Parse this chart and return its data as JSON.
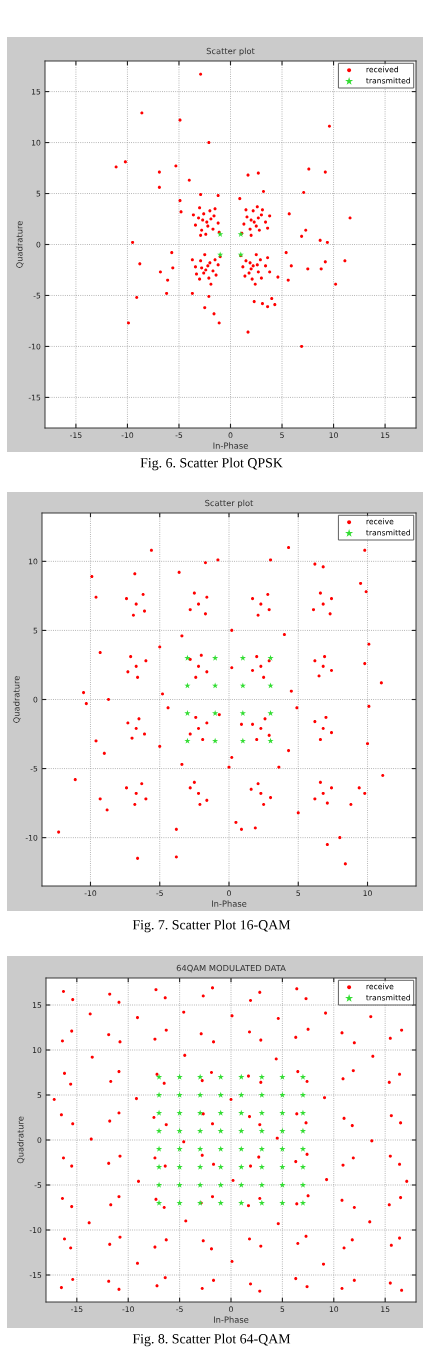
{
  "chart_data": [
    {
      "type": "scatter",
      "title": "Scatter plot",
      "xlabel": "In-Phase",
      "ylabel": "Quadrature",
      "annotations": [
        "Fig. 6. Scatter Plot QPSK"
      ],
      "xlim": [
        -18,
        18
      ],
      "ylim": [
        -18,
        18
      ],
      "xticks": [
        -15,
        -10,
        -5,
        0,
        5,
        10,
        15
      ],
      "yticks": [
        -15,
        -10,
        -5,
        0,
        5,
        10,
        15
      ],
      "grid": true,
      "legend": "top right",
      "series": [
        {
          "name": "received",
          "color": "#ff0000",
          "marker": "circle",
          "x": [
            -2.3,
            -3.1,
            -1.6,
            -2.8,
            -1.7,
            -3.4,
            -2.0,
            -2.6,
            -1.2,
            -3.6,
            -2.4,
            -1.5,
            -3.0,
            -2.9,
            -1.1,
            -2.2,
            -2.7,
            -1.9,
            2.3,
            1.6,
            3.0,
            1.9,
            2.8,
            3.4,
            2.2,
            1.3,
            2.6,
            3.6,
            1.5,
            3.1,
            2.0,
            1.1,
            3.8,
            2.5,
            2.0,
            2.7,
            -2.2,
            -2.9,
            -1.5,
            -2.6,
            -1.7,
            -3.4,
            -2.1,
            -1.2,
            -3.0,
            -3.7,
            -1.4,
            -2.5,
            -1.9,
            -3.3,
            -1.0,
            -2.4,
            -2.0,
            -2.8,
            2.2,
            1.5,
            2.9,
            1.8,
            2.7,
            3.4,
            2.1,
            1.2,
            3.0,
            3.6,
            1.4,
            2.5,
            2.4,
            3.8,
            1.0,
            2.0,
            2.6,
            1.9,
            -2.9,
            -8.6,
            -4.9,
            9.6,
            -2.1,
            -11.1,
            -10.2,
            -5.3,
            -6.9,
            -6.9,
            -4.0,
            1.7,
            2.7,
            7.6,
            9.2,
            7.1,
            11.6,
            7.3,
            6.9,
            8.7,
            9.4,
            -9.5,
            -8.8,
            11.1,
            9.2,
            7.5,
            8.8,
            10.2,
            5.9,
            5.6,
            -6.8,
            -6.1,
            -6.2,
            -9.1,
            -9.9,
            -2.5,
            -1.6,
            -1.1,
            1.7,
            6.9,
            2.3,
            3.1,
            3.6,
            4.3,
            4.0,
            -2.1,
            -3.7,
            -5.6,
            -5.7,
            -4.8,
            -4.9,
            -2.9,
            -1.2,
            0.9,
            3.2,
            5.7,
            5.4,
            4.6
          ],
          "values": [
            2.2,
            2.6,
            2.8,
            1.4,
            1.5,
            1.9,
            3.3,
            3.0,
            2.1,
            2.9,
            1.0,
            3.5,
            3.6,
            0.9,
            1.2,
            1.8,
            2.4,
            2.5,
            2.2,
            2.7,
            2.9,
            1.5,
            1.4,
            2.2,
            3.3,
            2.0,
            3.7,
            1.6,
            3.4,
            3.4,
            0.9,
            1.1,
            2.8,
            1.8,
            2.4,
            2.6,
            -2.1,
            -1.6,
            -1.5,
            -2.8,
            -2.6,
            -2.2,
            -3.3,
            -2.0,
            -3.4,
            -1.5,
            -3.0,
            -1.0,
            -3.9,
            -2.9,
            -1.2,
            -2.5,
            -1.8,
            -2.3,
            -2.1,
            -1.6,
            -1.5,
            -2.8,
            -2.7,
            -2.1,
            -3.4,
            -2.2,
            -3.3,
            -1.3,
            -3.1,
            -1.0,
            -3.9,
            -2.7,
            -1.1,
            -2.4,
            -2.0,
            -1.8,
            16.7,
            12.9,
            12.2,
            11.6,
            10.0,
            7.6,
            8.1,
            7.7,
            7.1,
            5.6,
            6.3,
            6.8,
            7.0,
            7.4,
            7.1,
            5.1,
            2.6,
            1.4,
            0.8,
            0.4,
            0.2,
            0.2,
            -1.9,
            -1.6,
            -1.7,
            -2.4,
            -2.4,
            -3.9,
            -2.1,
            -3.5,
            -2.7,
            -3.5,
            -4.8,
            -5.2,
            -7.7,
            -6.2,
            -6.8,
            -7.7,
            -8.6,
            -10.0,
            -5.6,
            -5.8,
            -6.1,
            -5.9,
            -5.3,
            -5.1,
            -4.8,
            -2.3,
            -0.8,
            3.2,
            4.3,
            4.9,
            4.8,
            4.5,
            5.2,
            3.0,
            -0.8,
            -3.2
          ]
        },
        {
          "name": "transmitted",
          "color": "#33dd33",
          "marker": "star",
          "x": [
            -1,
            1,
            -1,
            1
          ],
          "values": [
            1,
            1,
            -1,
            -1
          ]
        }
      ]
    },
    {
      "type": "scatter",
      "title": "Scatter plot",
      "xlabel": "In-Phase",
      "ylabel": "Quadrature",
      "annotations": [
        "Fig. 7. Scatter Plot 16-QAM"
      ],
      "xlim": [
        -13.5,
        13.5
      ],
      "ylim": [
        -13.5,
        13.5
      ],
      "xticks": [
        -10,
        -5,
        0,
        5,
        10
      ],
      "yticks": [
        -10,
        -5,
        0,
        5,
        10
      ],
      "grid": true,
      "legend": "top right",
      "series": [
        {
          "name": "receive",
          "color": "#ff0000",
          "marker": "circle",
          "x": [
            -6.7,
            -7.4,
            -6.1,
            -6.9,
            -6.2,
            -2.2,
            -2.8,
            -1.6,
            -2.5,
            -1.7,
            2.3,
            1.7,
            2.9,
            2.1,
            2.8,
            6.8,
            6.1,
            7.4,
            6.6,
            7.3,
            -6.7,
            -7.3,
            -6.0,
            -6.6,
            -7.1,
            -2.2,
            -1.6,
            -2.8,
            -2.0,
            -2.4,
            2.3,
            2.9,
            1.7,
            2.5,
            2.0,
            6.8,
            7.4,
            6.2,
            6.9,
            6.5,
            -6.7,
            -7.3,
            -6.1,
            -6.5,
            -7.0,
            -2.2,
            -2.8,
            -1.6,
            -2.4,
            -1.9,
            2.3,
            1.7,
            2.9,
            2.6,
            2.0,
            6.8,
            6.2,
            7.4,
            7.0,
            6.6,
            -6.7,
            -7.4,
            -6.0,
            -6.8,
            -6.3,
            -2.2,
            -1.6,
            -2.8,
            -2.1,
            -2.5,
            2.3,
            3.0,
            1.6,
            2.5,
            2.1,
            6.8,
            6.2,
            7.4,
            6.6,
            7.1,
            -5.6,
            4.3,
            9.8,
            9.5,
            9.9,
            -9.9,
            -9.6,
            -9.3,
            -10.5,
            -10.3,
            -8.7,
            -9.6,
            -9.0,
            -11.1,
            -12.3,
            -6.6,
            -3.8,
            -3.8,
            7.1,
            8.4,
            8.0,
            11.1,
            10.1,
            11.0,
            10.1,
            9.8,
            3.0,
            -0.8,
            -1.7,
            6.2,
            6.8,
            -3.6,
            -6.8,
            10.0,
            9.4,
            9.8,
            8.8,
            -8.8,
            -9.3,
            0.5,
            1.9,
            0.9,
            5.0,
            0.2,
            0.0,
            -5.0,
            -4.4,
            -3.4,
            0.2,
            4.0,
            4.9,
            4.5,
            -4.8,
            0.9,
            -0.7,
            4.3,
            -5.0,
            0.2,
            -3.4,
            3.6
          ],
          "values": [
            6.9,
            7.3,
            6.4,
            6.1,
            7.6,
            6.9,
            6.5,
            7.4,
            7.7,
            6.2,
            6.9,
            7.3,
            6.5,
            6.1,
            7.6,
            6.9,
            6.5,
            7.3,
            7.7,
            6.2,
            2.4,
            2.0,
            2.8,
            1.6,
            3.1,
            2.4,
            2.0,
            2.9,
            3.2,
            1.6,
            2.4,
            2.8,
            2.1,
            1.6,
            3.1,
            2.4,
            2.1,
            2.8,
            3.1,
            1.7,
            -2.1,
            -1.7,
            -2.5,
            -1.4,
            -2.8,
            -2.1,
            -2.5,
            -1.7,
            -1.3,
            -2.9,
            -2.1,
            -1.8,
            -2.6,
            -1.4,
            -2.9,
            -2.1,
            -1.6,
            -2.4,
            -1.3,
            -2.9,
            -6.8,
            -6.4,
            -7.2,
            -7.6,
            -6.1,
            -6.8,
            -7.3,
            -6.4,
            -7.6,
            -6.0,
            -6.8,
            -7.1,
            -6.5,
            -7.6,
            -6.1,
            -6.8,
            -7.2,
            -6.4,
            -6.0,
            -7.5,
            10.8,
            11.0,
            10.8,
            8.4,
            7.8,
            8.9,
            7.4,
            3.4,
            0.5,
            -0.3,
            0.0,
            -3.0,
            -3.9,
            -5.8,
            -9.6,
            -11.5,
            -11.4,
            -9.4,
            -10.5,
            -11.9,
            -10.0,
            -5.5,
            -0.5,
            1.2,
            4.0,
            2.6,
            10.1,
            10.1,
            9.9,
            9.8,
            9.6,
            9.2,
            9.1,
            -3.2,
            -6.4,
            -6.8,
            -7.6,
            -8.0,
            -7.2,
            -8.9,
            -9.3,
            -9.4,
            -8.2,
            -4.2,
            -4.9,
            -3.4,
            -0.6,
            4.6,
            5.0,
            4.7,
            -0.6,
            0.6,
            0.4,
            -1.8,
            -1.1,
            -3.7,
            3.8,
            2.3,
            -4.7,
            -4.9
          ]
        },
        {
          "name": "transmitted",
          "color": "#33dd33",
          "marker": "star",
          "x": [
            -3,
            -1,
            1,
            3,
            -3,
            -1,
            1,
            3,
            -3,
            -1,
            1,
            3,
            -3,
            -1,
            1,
            3
          ],
          "values": [
            3,
            3,
            3,
            3,
            1,
            1,
            1,
            1,
            -1,
            -1,
            -1,
            -1,
            -3,
            -3,
            -3,
            -3
          ]
        }
      ]
    },
    {
      "type": "scatter",
      "title": "64QAM MODULATED DATA",
      "xlabel": "In-Phase",
      "ylabel": "Quadrature",
      "annotations": [
        "Fig. 8. Scatter Plot 64-QAM"
      ],
      "xlim": [
        -18,
        18
      ],
      "ylim": [
        -18,
        18
      ],
      "xticks": [
        -15,
        -10,
        -5,
        0,
        5,
        10,
        15
      ],
      "yticks": [
        -15,
        -10,
        -5,
        0,
        5,
        10,
        15
      ],
      "grid": true,
      "legend": "top right",
      "series": [
        {
          "name": "receive",
          "color": "#ff0000",
          "marker": "circle",
          "x": [
            -16.3,
            -15.4,
            -11.8,
            -10.9,
            -7.3,
            -6.4,
            -2.7,
            -1.8,
            1.9,
            2.8,
            6.4,
            7.3,
            -16.4,
            -15.5,
            -11.9,
            -10.8,
            -7.4,
            -6.3,
            -2.9,
            -1.7,
            1.8,
            2.9,
            6.3,
            7.5,
            10.8,
            12.0,
            15.5,
            16.6,
            -16.2,
            -15.6,
            -11.7,
            -10.9,
            -7.2,
            -6.5,
            -2.8,
            -1.9,
            1.7,
            2.9,
            6.5,
            7.4,
            10.9,
            11.9,
            15.4,
            16.4,
            -16.5,
            -15.4,
            -11.8,
            -10.9,
            -7.5,
            -6.3,
            -2.7,
            -1.8,
            1.8,
            2.8,
            6.4,
            7.3,
            11.0,
            11.8,
            15.6,
            16.5,
            -16.3,
            -15.5,
            -11.9,
            -10.8,
            -7.4,
            -6.4,
            -2.8,
            -1.7,
            1.9,
            2.7,
            6.3,
            7.4,
            10.9,
            11.9,
            15.5,
            16.4,
            -16.4,
            -15.5,
            -11.7,
            -10.9,
            -7.3,
            -6.5,
            -2.9,
            -1.8,
            1.7,
            2.8,
            6.4,
            7.5,
            10.8,
            12.0,
            15.4,
            16.5,
            -16.2,
            -15.6,
            -11.8,
            -10.8,
            -7.4,
            -6.3,
            -2.7,
            -1.9,
            1.8,
            2.9,
            6.5,
            7.3,
            11.0,
            11.8,
            15.6,
            16.4,
            -16.5,
            -15.4,
            -11.9,
            -10.9,
            -7.2,
            -6.4,
            -2.8,
            -1.7,
            1.9,
            2.8,
            6.3,
            7.4,
            10.8,
            12.0,
            15.5,
            16.6,
            -13.7,
            -9.1,
            -4.6,
            0.1,
            4.6,
            9.2,
            13.6,
            -13.5,
            -4.5,
            4.4,
            13.8,
            -9.2,
            0.0,
            9.1,
            -13.6,
            -4.6,
            4.5,
            13.7,
            -9.0,
            0.2,
            9.3,
            -13.8,
            -4.4,
            4.6,
            13.5,
            -9.1,
            0.1,
            9.0,
            -17.2,
            17.1
          ],
          "values": [
            16.5,
            15.6,
            16.2,
            15.3,
            16.7,
            15.8,
            16.0,
            16.9,
            15.5,
            16.4,
            16.8,
            15.7,
            11.0,
            12.1,
            11.7,
            10.9,
            11.2,
            12.2,
            11.8,
            10.9,
            12.0,
            11.1,
            11.4,
            12.3,
            11.9,
            10.8,
            11.3,
            12.2,
            7.4,
            6.2,
            6.5,
            7.6,
            7.3,
            6.3,
            6.6,
            7.5,
            7.1,
            6.4,
            7.6,
            6.5,
            6.8,
            7.7,
            6.4,
            7.3,
            2.8,
            1.8,
            2.1,
            3.0,
            2.5,
            1.7,
            2.9,
            1.8,
            2.6,
            1.7,
            2.9,
            1.9,
            2.4,
            1.6,
            2.7,
            1.9,
            -2.0,
            -2.9,
            -2.6,
            -1.8,
            -2.0,
            -2.9,
            -1.7,
            -2.7,
            -2.9,
            -1.9,
            -2.4,
            -1.6,
            -2.8,
            -2.0,
            -1.8,
            -2.7,
            -6.5,
            -7.4,
            -7.2,
            -6.3,
            -6.6,
            -7.5,
            -7.0,
            -6.3,
            -7.3,
            -6.5,
            -7.1,
            -6.2,
            -6.7,
            -7.5,
            -7.2,
            -6.4,
            -11.0,
            -12.0,
            -11.6,
            -10.8,
            -11.9,
            -11.1,
            -11.2,
            -12.1,
            -11.0,
            -11.8,
            -11.5,
            -10.7,
            -12.0,
            -11.1,
            -11.7,
            -10.9,
            -16.4,
            -15.5,
            -15.7,
            -16.6,
            -16.2,
            -15.3,
            -16.5,
            -15.6,
            -16.0,
            -16.8,
            -15.4,
            -16.3,
            -16.5,
            -15.6,
            -15.9,
            -16.7,
            14.0,
            13.6,
            14.2,
            13.8,
            13.5,
            14.1,
            13.7,
            9.2,
            9.4,
            9.0,
            9.3,
            4.6,
            4.5,
            4.7,
            0.1,
            -0.2,
            0.2,
            -0.1,
            -4.6,
            -4.5,
            -4.4,
            -9.2,
            -9.0,
            -9.3,
            -9.1,
            -13.7,
            -13.5,
            -13.8,
            4.5,
            -4.6
          ]
        },
        {
          "name": "transmitted",
          "color": "#33dd33",
          "marker": "star",
          "x": [
            -7,
            -5,
            -3,
            -1,
            1,
            3,
            5,
            7,
            -7,
            -5,
            -3,
            -1,
            1,
            3,
            5,
            7,
            -7,
            -5,
            -3,
            -1,
            1,
            3,
            5,
            7,
            -7,
            -5,
            -3,
            -1,
            1,
            3,
            5,
            7,
            -7,
            -5,
            -3,
            -1,
            1,
            3,
            5,
            7,
            -7,
            -5,
            -3,
            -1,
            1,
            3,
            5,
            7,
            -7,
            -5,
            -3,
            -1,
            1,
            3,
            5,
            7,
            -7,
            -5,
            -3,
            -1,
            1,
            3,
            5,
            7
          ],
          "values": [
            7,
            7,
            7,
            7,
            7,
            7,
            7,
            7,
            5,
            5,
            5,
            5,
            5,
            5,
            5,
            5,
            3,
            3,
            3,
            3,
            3,
            3,
            3,
            3,
            1,
            1,
            1,
            1,
            1,
            1,
            1,
            1,
            -1,
            -1,
            -1,
            -1,
            -1,
            -1,
            -1,
            -1,
            -3,
            -3,
            -3,
            -3,
            -3,
            -3,
            -3,
            -3,
            -5,
            -5,
            -5,
            -5,
            -5,
            -5,
            -5,
            -5,
            -7,
            -7,
            -7,
            -7,
            -7,
            -7,
            -7,
            -7
          ]
        }
      ]
    }
  ]
}
